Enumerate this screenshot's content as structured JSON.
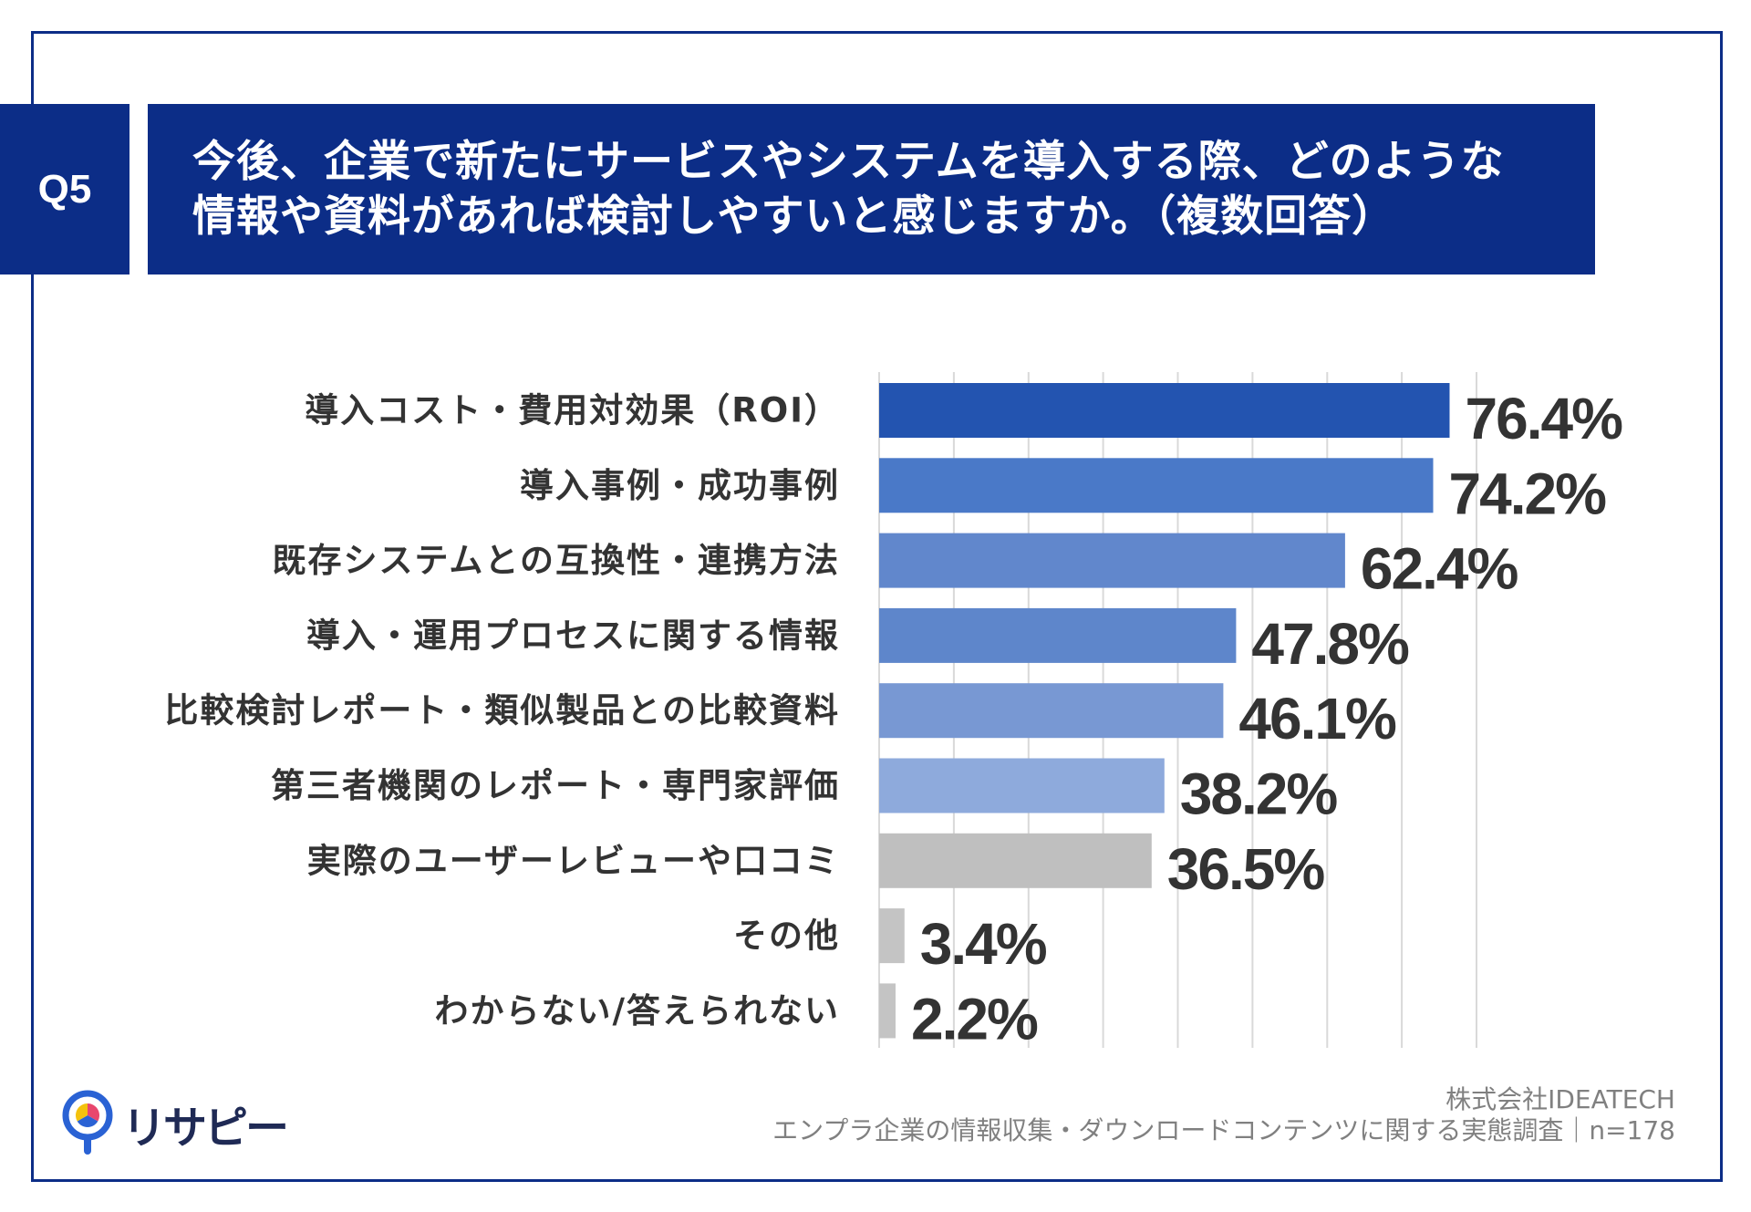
{
  "question": {
    "label": "Q5",
    "title_line1": "今後、企業で新たにサービスやシステムを導入する際、どのような",
    "title_line2": "情報や資料があれば検討しやすいと感じますか。（複数回答）"
  },
  "chart_data": {
    "type": "bar",
    "orientation": "horizontal",
    "categories": [
      "導入コスト・費用対効果（ROI）",
      "導入事例・成功事例",
      "既存システムとの互換性・連携方法",
      "導入・運用プロセスに関する情報",
      "比較検討レポート・類似製品との比較資料",
      "第三者機関のレポート・専門家評価",
      "実際のユーザーレビューや口コミ",
      "その他",
      "わからない/答えられない"
    ],
    "values": [
      76.4,
      74.2,
      62.4,
      47.8,
      46.1,
      38.2,
      36.5,
      3.4,
      2.2
    ],
    "value_labels": [
      "76.4%",
      "74.2%",
      "62.4%",
      "47.8%",
      "46.1%",
      "38.2%",
      "36.5%",
      "3.4%",
      "2.2%"
    ],
    "xlim": [
      0,
      80
    ],
    "grid": true,
    "grid_step": 10,
    "colors": [
      "#2354b0",
      "#4a79c8",
      "#6187cc",
      "#5e86cb",
      "#7898d3",
      "#8eaadc",
      "#bfbfbf",
      "#c4c4c4",
      "#c4c4c4"
    ]
  },
  "theme": {
    "navy": "#0c2d87",
    "grid": "#d9d9d9",
    "text": "#333333",
    "footer_text": "#808080"
  },
  "logo": {
    "text": "リサピー",
    "icon": "location-pin-pie-icon",
    "colors": {
      "blue": "#2a62d4",
      "yellow": "#f4c20d",
      "red": "#e8476e"
    }
  },
  "footer": {
    "company": "株式会社IDEATECH",
    "survey": "エンプラ企業の情報収集・ダウンロードコンテンツに関する実態調査｜n=178"
  }
}
